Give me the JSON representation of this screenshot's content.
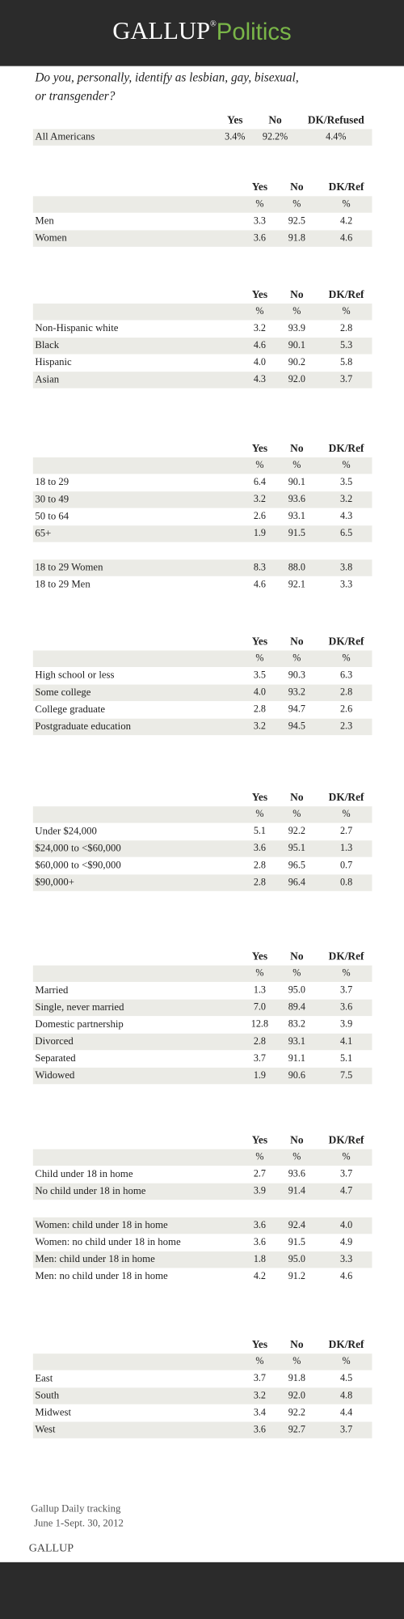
{
  "header": {
    "brand": "GALLUP",
    "registered": "®",
    "section": "Politics"
  },
  "question": [
    "Do you, personally, identify as lesbian, gay, bisexual,",
    "or transgender?"
  ],
  "tables": [
    {
      "columns": [
        "Yes",
        "No",
        "DK/Refused"
      ],
      "groups": [
        [
          {
            "label": "All Americans",
            "values": [
              "3.4%",
              "92.2%",
              "4.4%"
            ]
          }
        ]
      ]
    },
    {
      "columns": [
        "Yes",
        "No",
        "DK/Ref"
      ],
      "units": [
        "%",
        "%",
        "%"
      ],
      "groups": [
        [
          {
            "label": "Men",
            "values": [
              "3.3",
              "92.5",
              "4.2"
            ]
          },
          {
            "label": "Women",
            "values": [
              "3.6",
              "91.8",
              "4.6"
            ]
          }
        ]
      ]
    },
    {
      "columns": [
        "Yes",
        "No",
        "DK/Ref"
      ],
      "units": [
        "%",
        "%",
        "%"
      ],
      "groups": [
        [
          {
            "label": "Non-Hispanic white",
            "values": [
              "3.2",
              "93.9",
              "2.8"
            ]
          },
          {
            "label": "Black",
            "values": [
              "4.6",
              "90.1",
              "5.3"
            ]
          },
          {
            "label": "Hispanic",
            "values": [
              "4.0",
              "90.2",
              "5.8"
            ]
          },
          {
            "label": "Asian",
            "values": [
              "4.3",
              "92.0",
              "3.7"
            ]
          }
        ]
      ]
    },
    {
      "columns": [
        "Yes",
        "No",
        "DK/Ref"
      ],
      "units": [
        "%",
        "%",
        "%"
      ],
      "groups": [
        [
          {
            "label": "18 to 29",
            "values": [
              "6.4",
              "90.1",
              "3.5"
            ]
          },
          {
            "label": "30 to 49",
            "values": [
              "3.2",
              "93.6",
              "3.2"
            ]
          },
          {
            "label": "50 to 64",
            "values": [
              "2.6",
              "93.1",
              "4.3"
            ]
          },
          {
            "label": "65+",
            "values": [
              "1.9",
              "91.5",
              "6.5"
            ]
          }
        ],
        [
          {
            "label": "18 to 29 Women",
            "values": [
              "8.3",
              "88.0",
              "3.8"
            ]
          },
          {
            "label": "18 to 29 Men",
            "values": [
              "4.6",
              "92.1",
              "3.3"
            ]
          }
        ]
      ]
    },
    {
      "columns": [
        "Yes",
        "No",
        "DK/Ref"
      ],
      "units": [
        "%",
        "%",
        "%"
      ],
      "groups": [
        [
          {
            "label": "High school or less",
            "values": [
              "3.5",
              "90.3",
              "6.3"
            ]
          },
          {
            "label": "Some college",
            "values": [
              "4.0",
              "93.2",
              "2.8"
            ]
          },
          {
            "label": "College graduate",
            "values": [
              "2.8",
              "94.7",
              "2.6"
            ]
          },
          {
            "label": "Postgraduate education",
            "values": [
              "3.2",
              "94.5",
              "2.3"
            ]
          }
        ]
      ]
    },
    {
      "columns": [
        "Yes",
        "No",
        "DK/Ref"
      ],
      "units": [
        "%",
        "%",
        "%"
      ],
      "groups": [
        [
          {
            "label": "Under $24,000",
            "values": [
              "5.1",
              "92.2",
              "2.7"
            ]
          },
          {
            "label": "$24,000 to <$60,000",
            "values": [
              "3.6",
              "95.1",
              "1.3"
            ]
          },
          {
            "label": "$60,000 to <$90,000",
            "values": [
              "2.8",
              "96.5",
              "0.7"
            ]
          },
          {
            "label": "$90,000+",
            "values": [
              "2.8",
              "96.4",
              "0.8"
            ]
          }
        ]
      ]
    },
    {
      "columns": [
        "Yes",
        "No",
        "DK/Ref"
      ],
      "units": [
        "%",
        "%",
        "%"
      ],
      "groups": [
        [
          {
            "label": "Married",
            "values": [
              "1.3",
              "95.0",
              "3.7"
            ]
          },
          {
            "label": "Single, never married",
            "values": [
              "7.0",
              "89.4",
              "3.6"
            ]
          },
          {
            "label": "Domestic partnership",
            "values": [
              "12.8",
              "83.2",
              "3.9"
            ]
          },
          {
            "label": "Divorced",
            "values": [
              "2.8",
              "93.1",
              "4.1"
            ]
          },
          {
            "label": "Separated",
            "values": [
              "3.7",
              "91.1",
              "5.1"
            ]
          },
          {
            "label": "Widowed",
            "values": [
              "1.9",
              "90.6",
              "7.5"
            ]
          }
        ]
      ]
    },
    {
      "columns": [
        "Yes",
        "No",
        "DK/Ref"
      ],
      "units": [
        "%",
        "%",
        "%"
      ],
      "groups": [
        [
          {
            "label": "Child under 18 in home",
            "values": [
              "2.7",
              "93.6",
              "3.7"
            ]
          },
          {
            "label": "No child under 18 in home",
            "values": [
              "3.9",
              "91.4",
              "4.7"
            ]
          }
        ],
        [
          {
            "label": "Women: child under 18 in home",
            "values": [
              "3.6",
              "92.4",
              "4.0"
            ]
          },
          {
            "label": "Women: no child under 18 in home",
            "values": [
              "3.6",
              "91.5",
              "4.9"
            ]
          },
          {
            "label": "Men: child under 18 in home",
            "values": [
              "1.8",
              "95.0",
              "3.3"
            ]
          },
          {
            "label": "Men: no child under 18 in home",
            "values": [
              "4.2",
              "91.2",
              "4.6"
            ]
          }
        ]
      ]
    },
    {
      "columns": [
        "Yes",
        "No",
        "DK/Ref"
      ],
      "units": [
        "%",
        "%",
        "%"
      ],
      "groups": [
        [
          {
            "label": "East",
            "values": [
              "3.7",
              "91.8",
              "4.5"
            ]
          },
          {
            "label": "South",
            "values": [
              "3.2",
              "92.0",
              "4.8"
            ]
          },
          {
            "label": "Midwest",
            "values": [
              "3.4",
              "92.2",
              "4.4"
            ]
          },
          {
            "label": "West",
            "values": [
              "3.6",
              "92.7",
              "3.7"
            ]
          }
        ]
      ]
    }
  ],
  "footer": {
    "source": "Gallup Daily tracking",
    "dates": "June 1-Sept. 30, 2012",
    "brand": "GALLUP"
  }
}
